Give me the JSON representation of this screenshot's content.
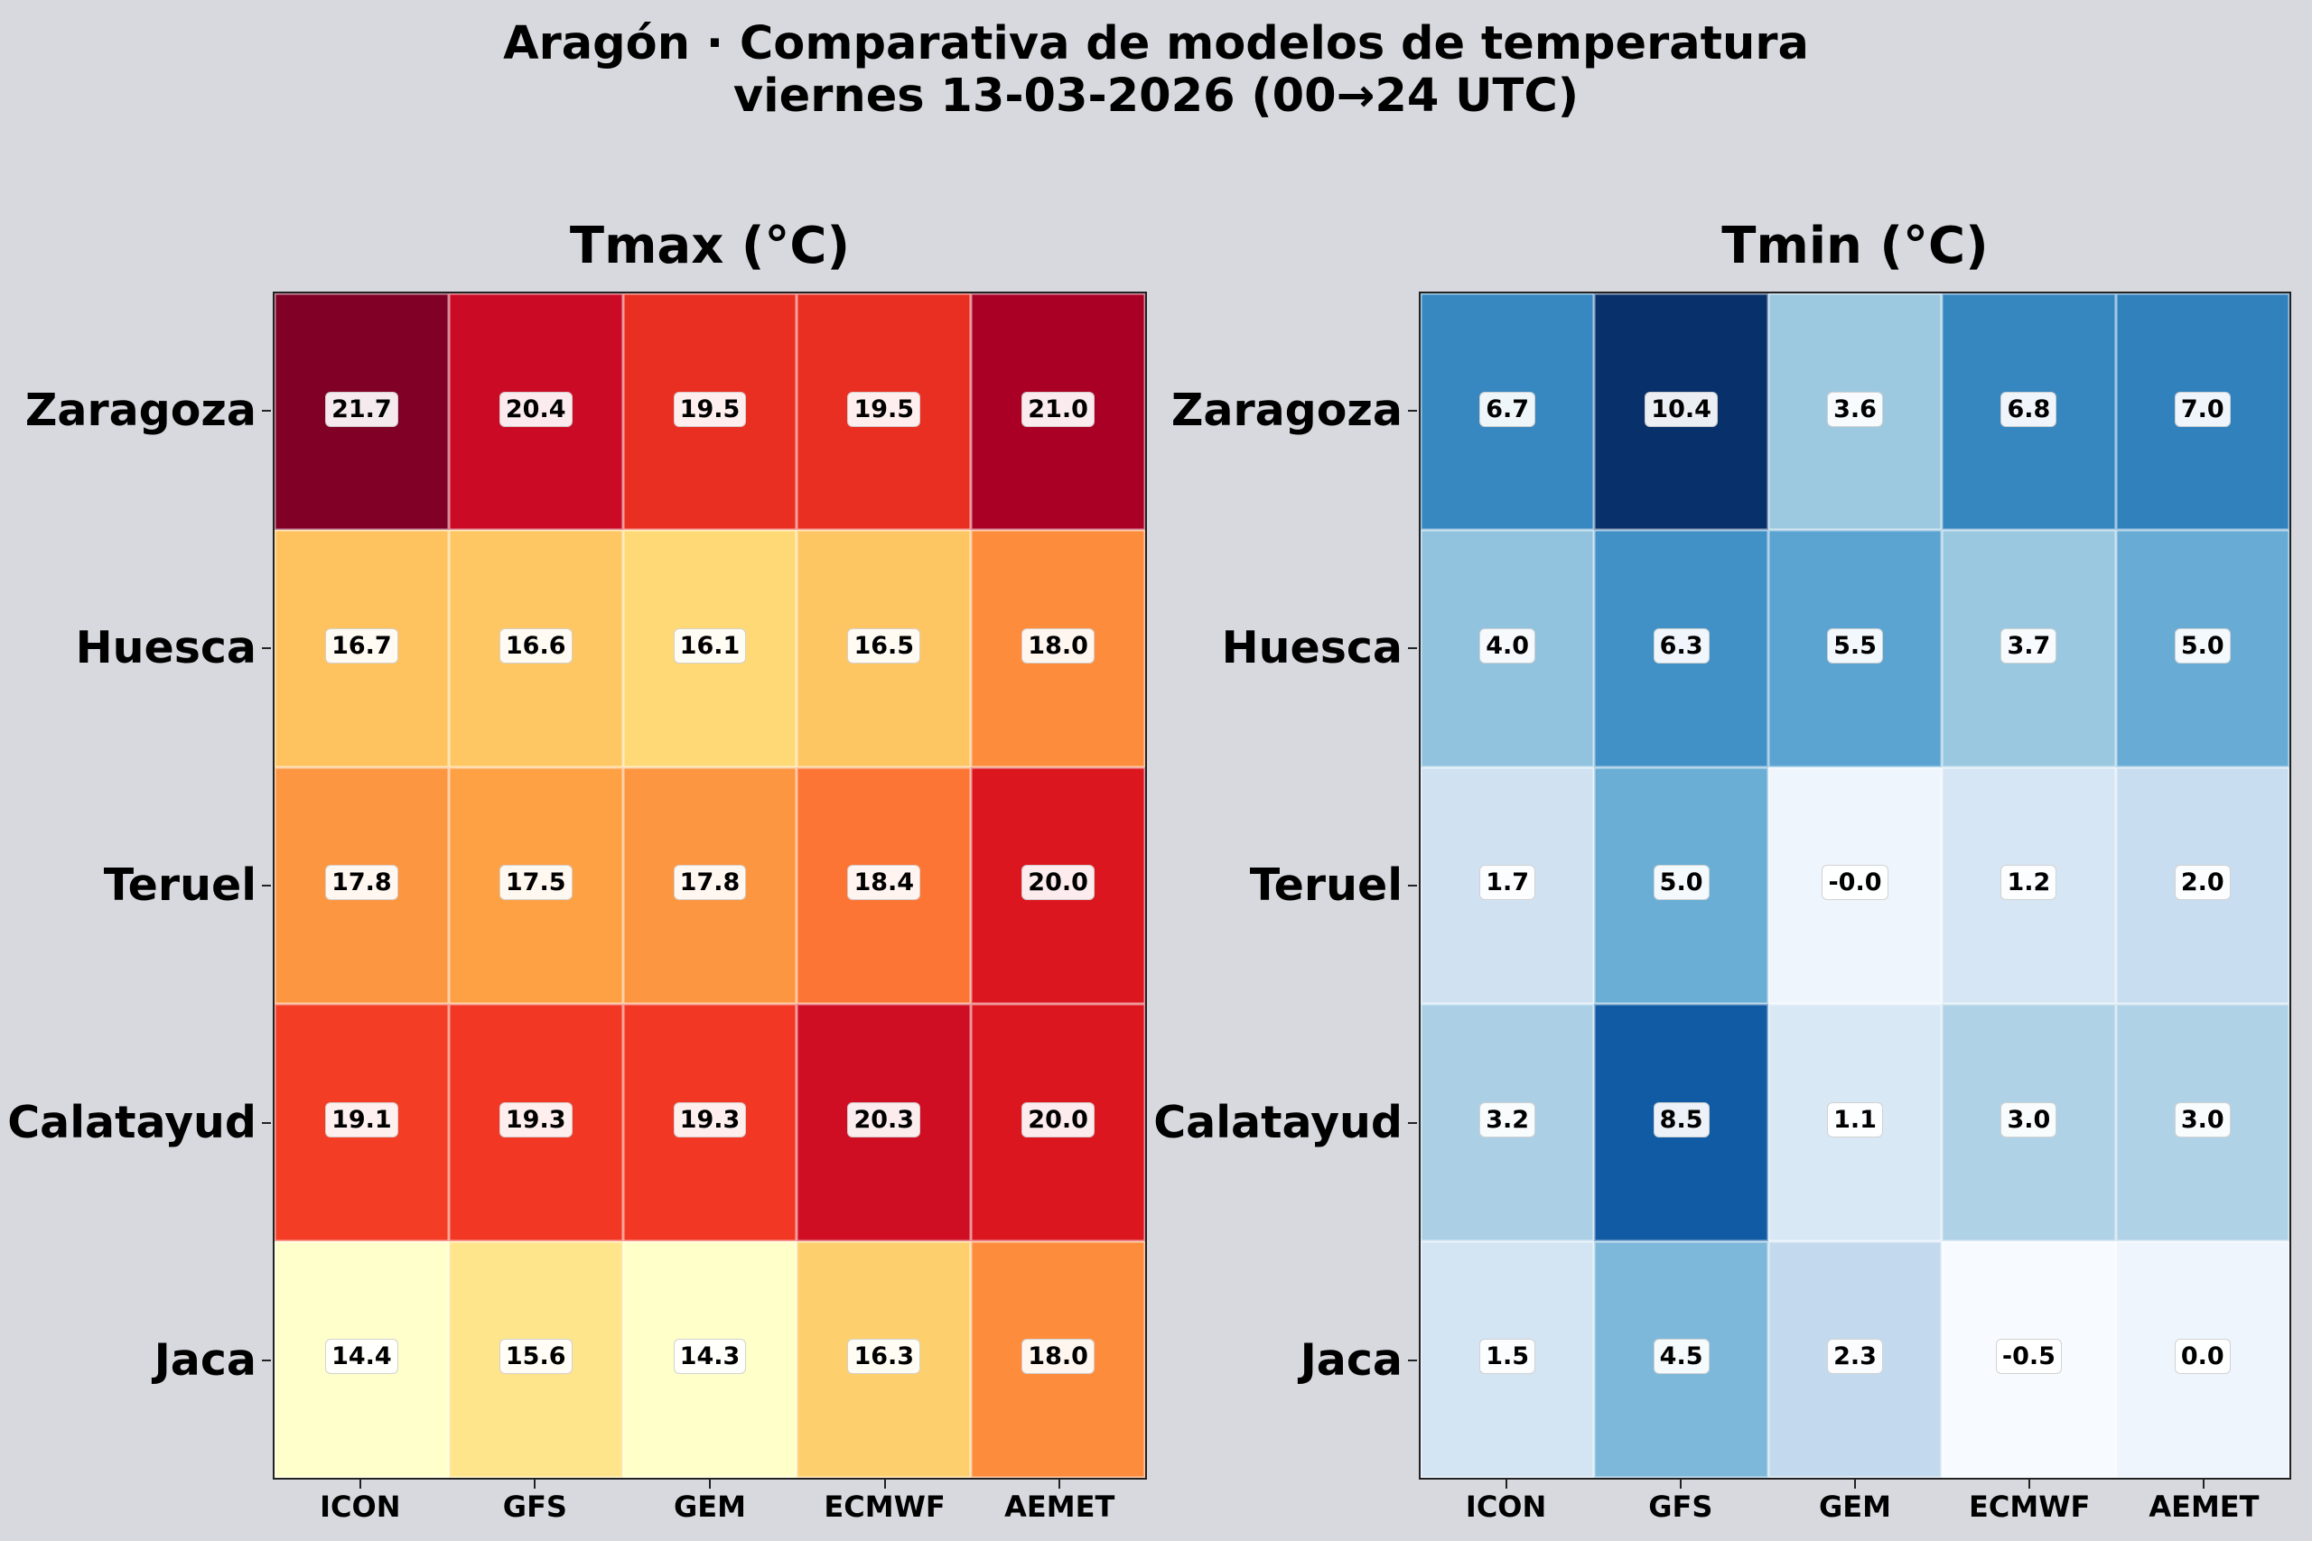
{
  "title": {
    "line1": "Aragón · Comparativa de modelos de temperatura",
    "line2": "viernes 13-03-2026 (00→24 UTC)"
  },
  "panels": [
    {
      "title": "Tmax (°C)",
      "colormap": "YlOrRd",
      "rows": [
        "Zaragoza",
        "Huesca",
        "Teruel",
        "Calatayud",
        "Jaca"
      ],
      "cols": [
        "ICON",
        "GFS",
        "GEM",
        "ECMWF",
        "AEMET"
      ],
      "labels": [
        [
          "21.7",
          "20.4",
          "19.5",
          "19.5",
          "21.0"
        ],
        [
          "16.7",
          "16.6",
          "16.1",
          "16.5",
          "18.0"
        ],
        [
          "17.8",
          "17.5",
          "17.8",
          "18.4",
          "20.0"
        ],
        [
          "19.1",
          "19.3",
          "19.3",
          "20.3",
          "20.0"
        ],
        [
          "14.4",
          "15.6",
          "14.3",
          "16.3",
          "18.0"
        ]
      ],
      "colors": [
        [
          "#800026",
          "#cb0b25",
          "#e92f22",
          "#e92f22",
          "#ab0026"
        ],
        [
          "#fec35f",
          "#fec764",
          "#fed976",
          "#fec663",
          "#fd8c3c"
        ],
        [
          "#fd9640",
          "#fea044",
          "#fd9640",
          "#fd7535",
          "#dc161e"
        ],
        [
          "#f33d25",
          "#f23825",
          "#f23825",
          "#cf0e23",
          "#dc161e"
        ],
        [
          "#ffffcc",
          "#fee48a",
          "#ffffca",
          "#fed06d",
          "#fd8c3c"
        ]
      ]
    },
    {
      "title": "Tmin (°C)",
      "colormap": "Blues",
      "rows": [
        "Zaragoza",
        "Huesca",
        "Teruel",
        "Calatayud",
        "Jaca"
      ],
      "cols": [
        "ICON",
        "GFS",
        "GEM",
        "ECMWF",
        "AEMET"
      ],
      "labels": [
        [
          "6.7",
          "10.4",
          "3.6",
          "6.8",
          "7.0"
        ],
        [
          "4.0",
          "6.3",
          "5.5",
          "3.7",
          "5.0"
        ],
        [
          "1.7",
          "5.0",
          "-0.0",
          "1.2",
          "2.0"
        ],
        [
          "3.2",
          "8.5",
          "1.1",
          "3.0",
          "3.0"
        ],
        [
          "1.5",
          "4.5",
          "2.3",
          "-0.5",
          "0.0"
        ]
      ],
      "colors": [
        [
          "#3787c0",
          "#08306b",
          "#9dc9e0",
          "#3686c0",
          "#3181bd"
        ],
        [
          "#91c3de",
          "#4190c6",
          "#5ba3d0",
          "#9ac8e0",
          "#68acd5"
        ],
        [
          "#d0e2f2",
          "#6aaed6",
          "#eff5fc",
          "#d6e6f4",
          "#c9ddf0"
        ],
        [
          "#abd0e6",
          "#105ba4",
          "#d9e8f5",
          "#b0d2e7",
          "#b0d2e7"
        ],
        [
          "#d3e4f3",
          "#7db8da",
          "#c3daee",
          "#f7fbff",
          "#eef5fc"
        ]
      ]
    }
  ],
  "chart_data": {
    "type": "heatmap",
    "title": "Aragón · Comparativa de modelos de temperatura — viernes 13-03-2026 (00→24 UTC)",
    "categories_y": [
      "Zaragoza",
      "Huesca",
      "Teruel",
      "Calatayud",
      "Jaca"
    ],
    "categories_x": [
      "ICON",
      "GFS",
      "GEM",
      "ECMWF",
      "AEMET"
    ],
    "series": [
      {
        "name": "Tmax (°C)",
        "colormap": "YlOrRd",
        "values": [
          [
            21.7,
            20.4,
            19.5,
            19.5,
            21.0
          ],
          [
            16.7,
            16.6,
            16.1,
            16.5,
            18.0
          ],
          [
            17.8,
            17.5,
            17.8,
            18.4,
            20.0
          ],
          [
            19.1,
            19.3,
            19.3,
            20.3,
            20.0
          ],
          [
            14.4,
            15.6,
            14.3,
            16.3,
            18.0
          ]
        ]
      },
      {
        "name": "Tmin (°C)",
        "colormap": "Blues",
        "values": [
          [
            6.7,
            10.4,
            3.6,
            6.8,
            7.0
          ],
          [
            4.0,
            6.3,
            5.5,
            3.7,
            5.0
          ],
          [
            1.7,
            5.0,
            -0.0,
            1.2,
            2.0
          ],
          [
            3.2,
            8.5,
            1.1,
            3.0,
            3.0
          ],
          [
            1.5,
            4.5,
            2.3,
            -0.5,
            0.0
          ]
        ]
      }
    ],
    "xlabel": "",
    "ylabel": "",
    "grid": false,
    "legend": "none (annotated cells)"
  }
}
